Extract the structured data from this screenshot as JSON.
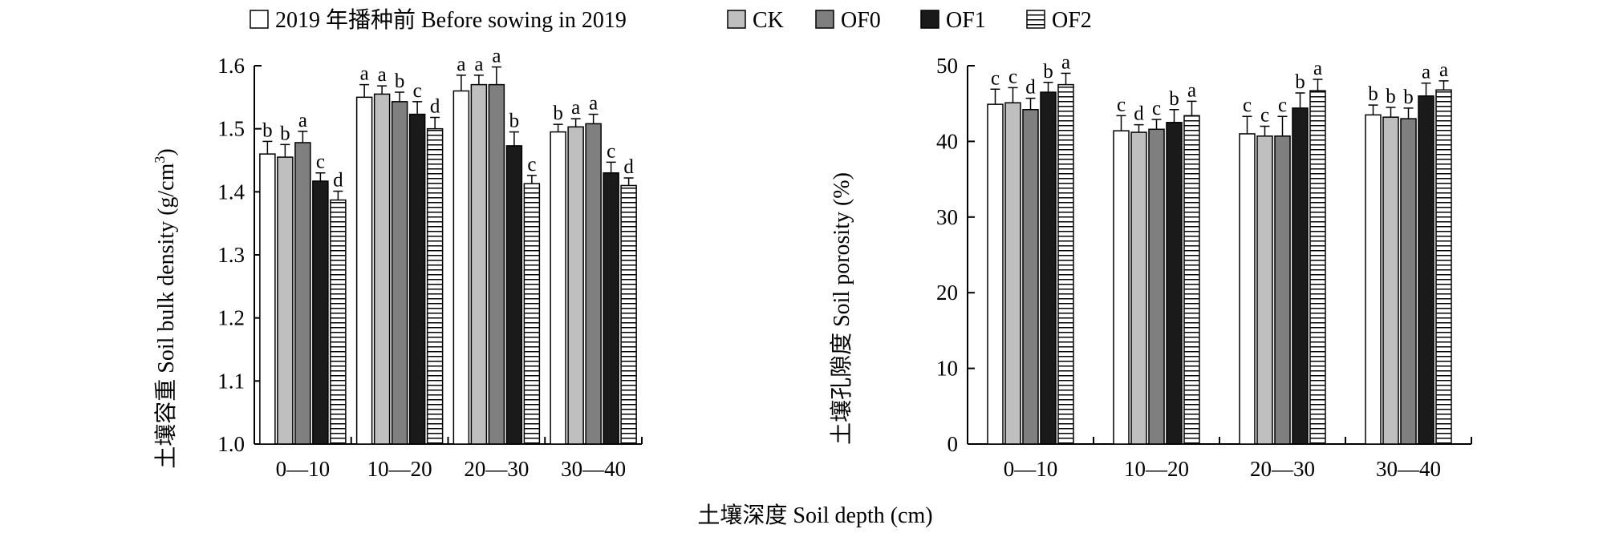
{
  "legend": [
    {
      "key": "before",
      "label": "2019 年播种前 Before sowing in 2019"
    },
    {
      "key": "ck",
      "label": "CK"
    },
    {
      "key": "of0",
      "label": "OF0"
    },
    {
      "key": "of1",
      "label": "OF1"
    },
    {
      "key": "of2",
      "label": "OF2"
    }
  ],
  "series_styles": {
    "before": {
      "fill": "#ffffff",
      "pattern": "none"
    },
    "ck": {
      "fill": "#bfbfbf",
      "pattern": "none"
    },
    "of0": {
      "fill": "#7f7f7f",
      "pattern": "none"
    },
    "of1": {
      "fill": "#1a1a1a",
      "pattern": "none"
    },
    "of2": {
      "fill": "#ffffff",
      "pattern": "horizontal-lines"
    }
  },
  "shared_xlabel": "土壤深度 Soil depth (cm)",
  "chart_data": [
    {
      "type": "bar",
      "ylabel": "土壤容重 Soil bulk density (g/cm³)",
      "ylabel_main": "土壤容重 Soil bulk density (g/cm",
      "ylabel_sup": "3",
      "ylabel_end": ")",
      "ylim": [
        1.0,
        1.6
      ],
      "yticks": [
        "1.0",
        "1.1",
        "1.2",
        "1.3",
        "1.4",
        "1.5",
        "1.6"
      ],
      "categories": [
        "0—10",
        "10—20",
        "20—30",
        "30—40"
      ],
      "series": [
        {
          "key": "before",
          "name": "2019 年播种前 Before sowing in 2019",
          "values": [
            1.46,
            1.55,
            1.56,
            1.495
          ],
          "errors": [
            0.02,
            0.02,
            0.025,
            0.012
          ],
          "labels": [
            "b",
            "a",
            "a",
            "b"
          ]
        },
        {
          "key": "ck",
          "name": "CK",
          "values": [
            1.455,
            1.555,
            1.57,
            1.503
          ],
          "errors": [
            0.02,
            0.013,
            0.015,
            0.013
          ],
          "labels": [
            "b",
            "a",
            "a",
            "a"
          ]
        },
        {
          "key": "of0",
          "name": "OF0",
          "values": [
            1.478,
            1.543,
            1.57,
            1.508
          ],
          "errors": [
            0.018,
            0.015,
            0.028,
            0.015
          ],
          "labels": [
            "a",
            "b",
            "a",
            "a"
          ]
        },
        {
          "key": "of1",
          "name": "OF1",
          "values": [
            1.417,
            1.523,
            1.473,
            1.43
          ],
          "errors": [
            0.013,
            0.02,
            0.022,
            0.017
          ],
          "labels": [
            "c",
            "c",
            "b",
            "c"
          ]
        },
        {
          "key": "of2",
          "name": "OF2",
          "values": [
            1.387,
            1.5,
            1.413,
            1.41
          ],
          "errors": [
            0.014,
            0.018,
            0.013,
            0.012
          ],
          "labels": [
            "d",
            "d",
            "c",
            "d"
          ]
        }
      ],
      "grid": false
    },
    {
      "type": "bar",
      "ylabel": "土壤孔隙度 Soil porosity (%)",
      "ylim": [
        0,
        50
      ],
      "yticks": [
        "0",
        "10",
        "20",
        "30",
        "40",
        "50"
      ],
      "categories": [
        "0—10",
        "10—20",
        "20—30",
        "30—40"
      ],
      "series": [
        {
          "key": "before",
          "name": "2019 年播种前 Before sowing in 2019",
          "values": [
            44.9,
            41.4,
            41.0,
            43.5
          ],
          "errors": [
            2.0,
            2.0,
            2.3,
            1.3
          ],
          "labels": [
            "c",
            "c",
            "c",
            "b"
          ]
        },
        {
          "key": "ck",
          "name": "CK",
          "values": [
            45.1,
            41.2,
            40.7,
            43.2
          ],
          "errors": [
            2.0,
            1.0,
            1.3,
            1.3
          ],
          "labels": [
            "c",
            "d",
            "c",
            "b"
          ]
        },
        {
          "key": "of0",
          "name": "OF0",
          "values": [
            44.2,
            41.6,
            40.7,
            43.0
          ],
          "errors": [
            1.5,
            1.3,
            2.6,
            1.4
          ],
          "labels": [
            "d",
            "c",
            "c",
            "b"
          ]
        },
        {
          "key": "of1",
          "name": "OF1",
          "values": [
            46.5,
            42.5,
            44.4,
            46.0
          ],
          "errors": [
            1.3,
            1.7,
            2.0,
            1.7
          ],
          "labels": [
            "b",
            "b",
            "b",
            "a"
          ]
        },
        {
          "key": "of2",
          "name": "OF2",
          "values": [
            47.5,
            43.4,
            46.7,
            46.8
          ],
          "errors": [
            1.5,
            1.9,
            1.5,
            1.2
          ],
          "labels": [
            "a",
            "a",
            "a",
            "a"
          ]
        }
      ],
      "grid": false
    }
  ]
}
